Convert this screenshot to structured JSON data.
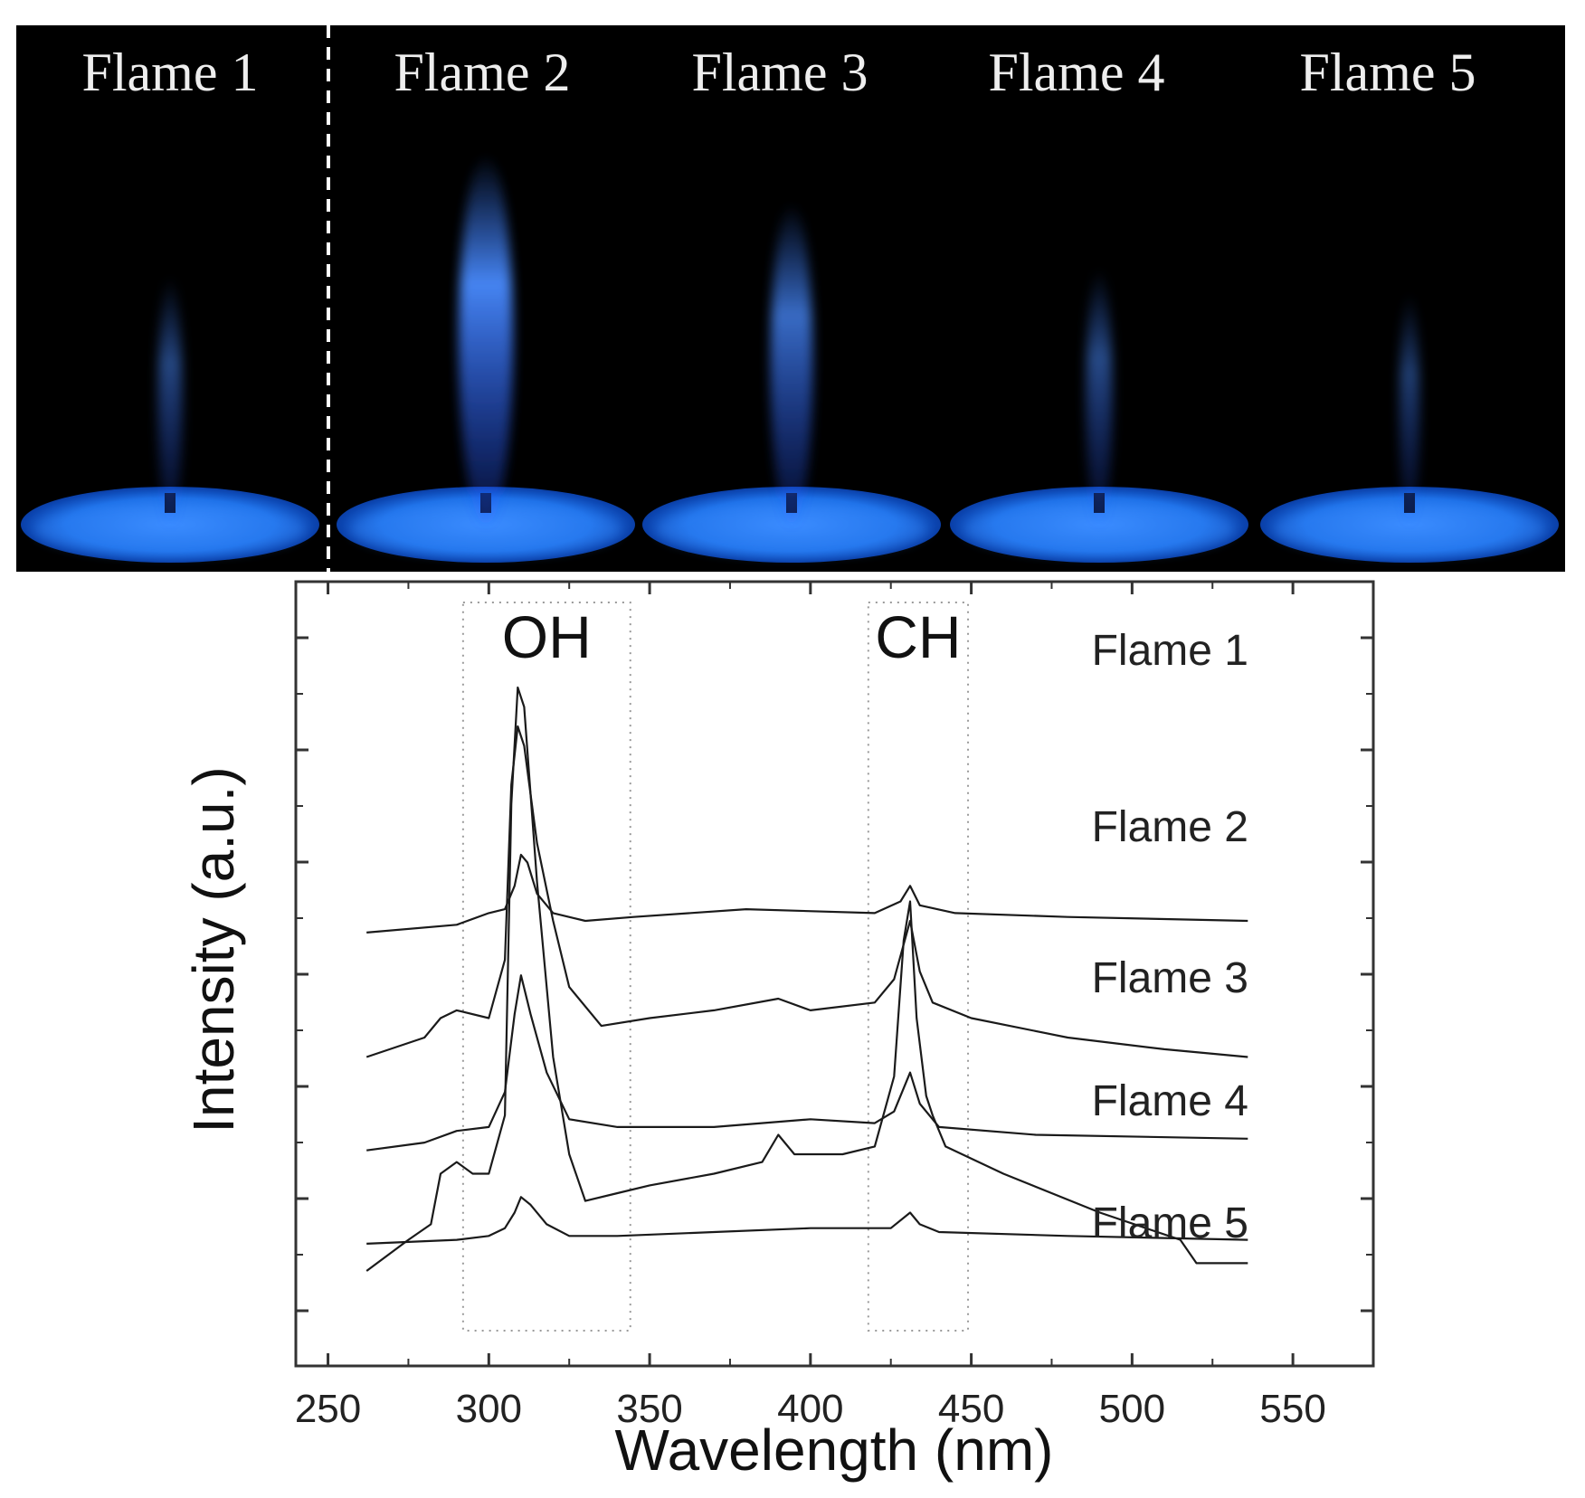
{
  "photo": {
    "labels": [
      "Flame 1",
      "Flame 2",
      "Flame 3",
      "Flame 4",
      "Flame 5"
    ],
    "flame_intensity": [
      0.25,
      1.0,
      0.7,
      0.3,
      0.15
    ],
    "flame_color": "#3a7bff",
    "burner_color": "#1e6fe0",
    "background": "#000000"
  },
  "chart_data": {
    "type": "line",
    "xlabel": "Wavelength (nm)",
    "ylabel": "Intensity (a.u.)",
    "xlim": [
      240,
      575
    ],
    "xticks": [
      250,
      300,
      350,
      400,
      450,
      500,
      550
    ],
    "grid": false,
    "bands": [
      {
        "label": "OH",
        "x_range": [
          292,
          344
        ]
      },
      {
        "label": "CH",
        "x_range": [
          418,
          449
        ]
      }
    ],
    "series": [
      {
        "name": "Flame 1",
        "baseline": 0.87,
        "points": [
          [
            262,
            0
          ],
          [
            290,
            0.02
          ],
          [
            300,
            0.05
          ],
          [
            305,
            0.06
          ],
          [
            308,
            0.12
          ],
          [
            310,
            0.2
          ],
          [
            312,
            0.18
          ],
          [
            315,
            0.1
          ],
          [
            320,
            0.05
          ],
          [
            330,
            0.03
          ],
          [
            345,
            0.04
          ],
          [
            380,
            0.06
          ],
          [
            420,
            0.05
          ],
          [
            428,
            0.08
          ],
          [
            431,
            0.12
          ],
          [
            434,
            0.07
          ],
          [
            445,
            0.05
          ],
          [
            480,
            0.04
          ],
          [
            536,
            0.03
          ]
        ]
      },
      {
        "name": "Flame 2",
        "baseline": 0.0,
        "points": [
          [
            262,
            0
          ],
          [
            275,
            0.08
          ],
          [
            282,
            0.12
          ],
          [
            285,
            0.25
          ],
          [
            290,
            0.28
          ],
          [
            295,
            0.25
          ],
          [
            300,
            0.25
          ],
          [
            305,
            0.4
          ],
          [
            307,
            1.2
          ],
          [
            309,
            1.5
          ],
          [
            311,
            1.45
          ],
          [
            315,
            1.0
          ],
          [
            320,
            0.55
          ],
          [
            325,
            0.3
          ],
          [
            330,
            0.18
          ],
          [
            340,
            0.2
          ],
          [
            350,
            0.22
          ],
          [
            370,
            0.25
          ],
          [
            385,
            0.28
          ],
          [
            390,
            0.35
          ],
          [
            395,
            0.3
          ],
          [
            410,
            0.3
          ],
          [
            420,
            0.32
          ],
          [
            426,
            0.5
          ],
          [
            429,
            0.85
          ],
          [
            431,
            0.95
          ],
          [
            433,
            0.65
          ],
          [
            436,
            0.45
          ],
          [
            438,
            0.4
          ],
          [
            442,
            0.32
          ],
          [
            460,
            0.25
          ],
          [
            490,
            0.15
          ],
          [
            515,
            0.08
          ],
          [
            520,
            0.02
          ],
          [
            536,
            0.02
          ]
        ]
      },
      {
        "name": "Flame 3",
        "baseline": 0.55,
        "points": [
          [
            262,
            0
          ],
          [
            280,
            0.05
          ],
          [
            285,
            0.1
          ],
          [
            290,
            0.12
          ],
          [
            300,
            0.1
          ],
          [
            305,
            0.25
          ],
          [
            307,
            0.7
          ],
          [
            309,
            0.85
          ],
          [
            311,
            0.8
          ],
          [
            315,
            0.55
          ],
          [
            320,
            0.35
          ],
          [
            325,
            0.18
          ],
          [
            335,
            0.08
          ],
          [
            350,
            0.1
          ],
          [
            370,
            0.12
          ],
          [
            390,
            0.15
          ],
          [
            400,
            0.12
          ],
          [
            420,
            0.14
          ],
          [
            426,
            0.2
          ],
          [
            431,
            0.35
          ],
          [
            434,
            0.22
          ],
          [
            438,
            0.14
          ],
          [
            450,
            0.1
          ],
          [
            480,
            0.05
          ],
          [
            510,
            0.02
          ],
          [
            536,
            0
          ]
        ]
      },
      {
        "name": "Flame 4",
        "baseline": 0.31,
        "points": [
          [
            262,
            0
          ],
          [
            280,
            0.02
          ],
          [
            290,
            0.05
          ],
          [
            300,
            0.06
          ],
          [
            305,
            0.15
          ],
          [
            308,
            0.35
          ],
          [
            310,
            0.45
          ],
          [
            313,
            0.35
          ],
          [
            318,
            0.2
          ],
          [
            325,
            0.08
          ],
          [
            340,
            0.06
          ],
          [
            370,
            0.06
          ],
          [
            400,
            0.08
          ],
          [
            420,
            0.07
          ],
          [
            426,
            0.1
          ],
          [
            431,
            0.2
          ],
          [
            434,
            0.12
          ],
          [
            440,
            0.06
          ],
          [
            470,
            0.04
          ],
          [
            536,
            0.03
          ]
        ]
      },
      {
        "name": "Flame 5",
        "baseline": 0.07,
        "points": [
          [
            262,
            0
          ],
          [
            290,
            0.01
          ],
          [
            300,
            0.02
          ],
          [
            305,
            0.04
          ],
          [
            308,
            0.08
          ],
          [
            310,
            0.12
          ],
          [
            313,
            0.1
          ],
          [
            318,
            0.05
          ],
          [
            325,
            0.02
          ],
          [
            340,
            0.02
          ],
          [
            370,
            0.03
          ],
          [
            400,
            0.04
          ],
          [
            425,
            0.04
          ],
          [
            431,
            0.08
          ],
          [
            434,
            0.05
          ],
          [
            440,
            0.03
          ],
          [
            480,
            0.02
          ],
          [
            536,
            0.01
          ]
        ]
      }
    ]
  }
}
